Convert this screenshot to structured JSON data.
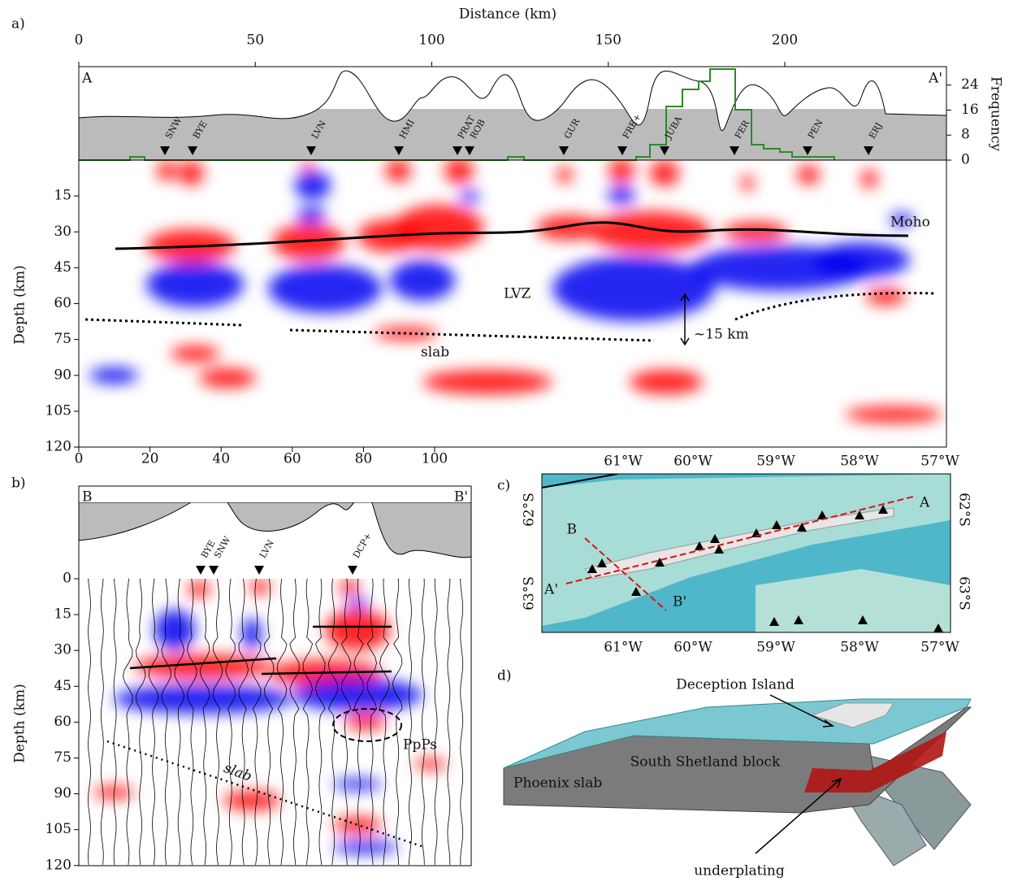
{
  "panel_a": {
    "label": "a)",
    "x_axis_title": "Distance (km)",
    "x_ticks_top": [
      0,
      50,
      100,
      150,
      200
    ],
    "x_ticks_bottom": [
      0,
      20,
      40,
      60,
      80,
      100
    ],
    "y_axis_title": "Depth (km)",
    "y_ticks": [
      15,
      30,
      45,
      60,
      75,
      90,
      105,
      120
    ],
    "y2_axis_title": "Frequency",
    "y2_ticks": [
      0,
      8,
      16,
      24
    ],
    "corner_left": "A",
    "corner_right": "A'",
    "stations": [
      "SNW",
      "BYE",
      "LVN",
      "HMI",
      "PRAT",
      "ROB",
      "GUR",
      "FRE+",
      "JUBA",
      "FER",
      "PEN",
      "ERJ"
    ],
    "annotations": {
      "moho": "Moho",
      "lvz": "LVZ",
      "slab": "slab",
      "offset": "~15 km"
    }
  },
  "panel_b": {
    "label": "b)",
    "y_axis_title": "Depth (km)",
    "y_ticks": [
      0,
      15,
      30,
      45,
      60,
      75,
      90,
      105,
      120
    ],
    "corner_left": "B",
    "corner_right": "B'",
    "stations": [
      "BYE",
      "SNW",
      "LVN",
      "DCP+"
    ],
    "annotations": {
      "ppps": "PpPs",
      "slab": "slab"
    }
  },
  "panel_c": {
    "label": "c)",
    "lon_ticks": [
      "61°W",
      "60°W",
      "59°W",
      "58°W",
      "57°W"
    ],
    "lat_ticks": [
      "62°S",
      "63°S"
    ],
    "profile_labels": [
      "A",
      "A'",
      "B",
      "B'"
    ]
  },
  "panel_d": {
    "label": "d)",
    "annotations": [
      "Deception Island",
      "South Shetland block",
      "Phoenix slab",
      "underplating"
    ]
  }
}
